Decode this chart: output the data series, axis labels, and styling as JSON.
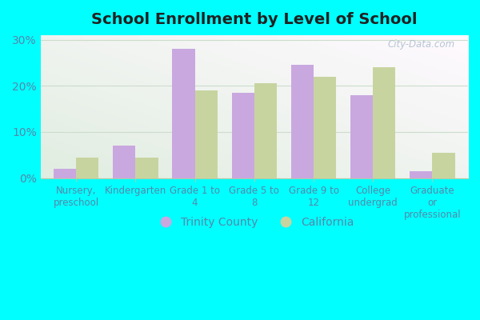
{
  "title": "School Enrollment by Level of School",
  "categories": [
    "Nursery,\npreschool",
    "Kindergarten",
    "Grade 1 to\n4",
    "Grade 5 to\n8",
    "Grade 9 to\n12",
    "College\nundergrad",
    "Graduate\nor\nprofessional"
  ],
  "trinity_values": [
    2.0,
    7.0,
    28.0,
    18.5,
    24.5,
    18.0,
    1.5
  ],
  "california_values": [
    4.5,
    4.5,
    19.0,
    20.5,
    22.0,
    24.0,
    5.5
  ],
  "trinity_color": "#c9a8e0",
  "california_color": "#c8d4a0",
  "background_color": "#00ffff",
  "plot_bg_top": "#e8f5e8",
  "plot_bg_bottom": "#d0f0d0",
  "ylim": [
    0,
    31
  ],
  "yticks": [
    0,
    10,
    20,
    30
  ],
  "ytick_labels": [
    "0%",
    "10%",
    "20%",
    "30%"
  ],
  "legend_trinity": "Trinity County",
  "legend_california": "California",
  "bar_width": 0.38,
  "watermark": "City-Data.com",
  "tick_label_color": "#5588aa",
  "title_color": "#222222",
  "grid_color": "#ccddcc"
}
